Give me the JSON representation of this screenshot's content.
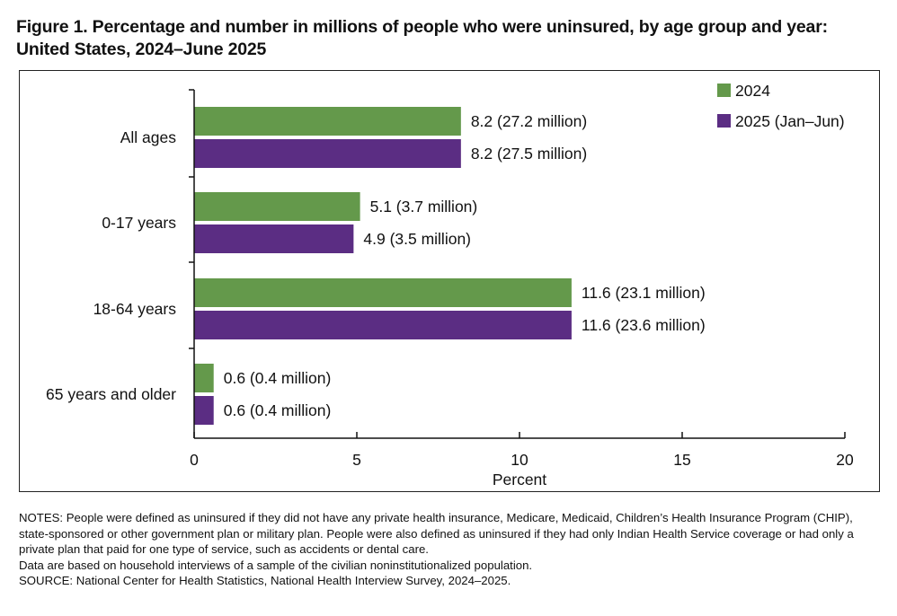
{
  "title": "Figure 1. Percentage and number in millions of people who were uninsured, by age group and year: United States, 2024–June 2025",
  "colors": {
    "s2024": "#64994b",
    "s2025": "#5b2d83",
    "axis": "#111111"
  },
  "chart_data": {
    "type": "bar",
    "orientation": "horizontal",
    "categories": [
      "All ages",
      "0-17 years",
      "18-64 years",
      "65 years and older"
    ],
    "series": [
      {
        "name": "2024",
        "values": [
          8.2,
          5.1,
          11.6,
          0.6
        ],
        "labels": [
          "8.2 (27.2 million)",
          "5.1 (3.7 million)",
          "11.6 (23.1 million)",
          "0.6 (0.4 million)"
        ]
      },
      {
        "name": "2025 (Jan–Jun)",
        "values": [
          8.2,
          4.9,
          11.6,
          0.6
        ],
        "labels": [
          "8.2 (27.5 million)",
          "4.9 (3.5 million)",
          "11.6 (23.6 million)",
          "0.6 (0.4 million)"
        ]
      }
    ],
    "xlabel": "Percent",
    "xlim": [
      0,
      20
    ],
    "xticks": [
      0,
      5,
      10,
      15,
      20
    ],
    "legend_position": "top-right",
    "grid": false
  },
  "notes": [
    "NOTES: People were defined as uninsured if they did not have any private health insurance, Medicare, Medicaid, Children’s Health Insurance Program (CHIP), state-sponsored or other government plan or military plan. People were also defined as uninsured if they had only Indian Health Service coverage or had only a private plan that paid for one type of service, such as accidents or dental care.",
    "Data are based on household interviews of a sample of the civilian noninstitutionalized population.",
    "SOURCE: National Center for Health Statistics, National Health Interview Survey, 2024–2025."
  ]
}
